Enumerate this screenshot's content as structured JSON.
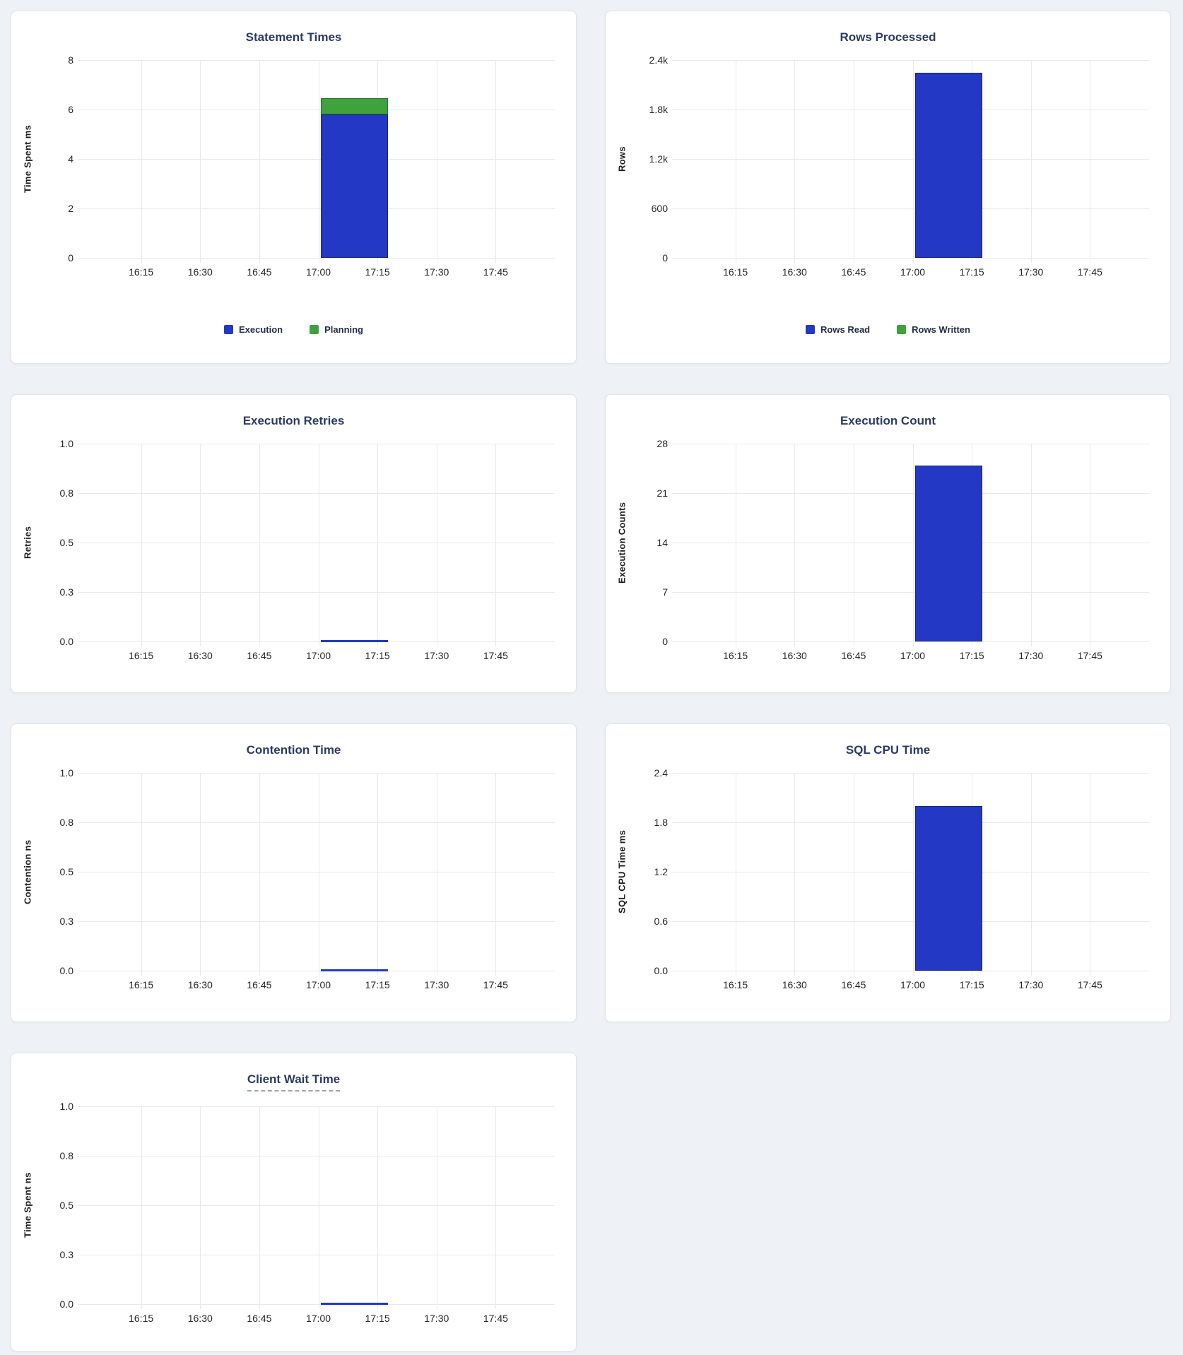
{
  "page": {
    "background_color": "#eef1f5",
    "card_background": "#ffffff",
    "description": "Database statement monitoring dashboard with seven time-series bar charts"
  },
  "colors": {
    "bar_blue_fill": "#2338c5",
    "bar_blue_border": "#172579",
    "bar_green_fill": "#3fa23c",
    "bar_green_border": "#27742c",
    "title_text": "#2c3a64",
    "tick_text": "#262626",
    "gridline": "#e8e9eb"
  },
  "axis": {
    "x_ticks": [
      "16:15",
      "16:30",
      "16:45",
      "17:00",
      "17:15",
      "17:30",
      "17:45"
    ],
    "x_tick_positions_pct": [
      12.5,
      25,
      37.5,
      50,
      62.5,
      75,
      87.5
    ],
    "bar_left_pct": 50.5,
    "bar_width_pct": 14.2
  },
  "chart_data": [
    {
      "type": "bar",
      "title": "Statement Times",
      "ylabel": "Time Spent ms",
      "y_ticks": [
        "8",
        "6",
        "4",
        "2",
        "0"
      ],
      "ylim": [
        0,
        8
      ],
      "x": [
        "17:00-17:15"
      ],
      "series": [
        {
          "name": "Execution",
          "color": "blue",
          "values": [
            5.8
          ]
        },
        {
          "name": "Planning",
          "color": "green",
          "values": [
            0.65
          ]
        }
      ],
      "legend": [
        {
          "label": "Execution",
          "color": "blue"
        },
        {
          "label": "Planning",
          "color": "green"
        }
      ],
      "title_underlined": false,
      "zero_line": false
    },
    {
      "type": "bar",
      "title": "Rows Processed",
      "ylabel": "Rows",
      "y_ticks": [
        "2.4k",
        "1.8k",
        "1.2k",
        "600",
        "0"
      ],
      "ylim": [
        0,
        2400
      ],
      "x": [
        "17:00-17:15"
      ],
      "series": [
        {
          "name": "Rows Read",
          "color": "blue",
          "values": [
            2250
          ]
        },
        {
          "name": "Rows Written",
          "color": "green",
          "values": [
            0
          ]
        }
      ],
      "legend": [
        {
          "label": "Rows Read",
          "color": "blue"
        },
        {
          "label": "Rows Written",
          "color": "green"
        }
      ],
      "title_underlined": false,
      "zero_line": false
    },
    {
      "type": "bar",
      "title": "Execution Retries",
      "ylabel": "Retries",
      "y_ticks": [
        "1.0",
        "0.8",
        "0.5",
        "0.3",
        "0.0"
      ],
      "ylim": [
        0,
        1
      ],
      "x": [
        "17:00-17:15"
      ],
      "series": [
        {
          "name": "Retries",
          "color": "blue",
          "values": [
            0
          ]
        }
      ],
      "legend": [],
      "title_underlined": false,
      "zero_line": true
    },
    {
      "type": "bar",
      "title": "Execution Count",
      "ylabel": "Execution Counts",
      "y_ticks": [
        "28",
        "21",
        "14",
        "7",
        "0"
      ],
      "ylim": [
        0,
        28
      ],
      "x": [
        "17:00-17:15"
      ],
      "series": [
        {
          "name": "Execution Count",
          "color": "blue",
          "values": [
            24.9
          ]
        }
      ],
      "legend": [],
      "title_underlined": false,
      "zero_line": false
    },
    {
      "type": "bar",
      "title": "Contention Time",
      "ylabel": "Contention ns",
      "y_ticks": [
        "1.0",
        "0.8",
        "0.5",
        "0.3",
        "0.0"
      ],
      "ylim": [
        0,
        1
      ],
      "x": [
        "17:00-17:15"
      ],
      "series": [
        {
          "name": "Contention",
          "color": "blue",
          "values": [
            0
          ]
        }
      ],
      "legend": [],
      "title_underlined": false,
      "zero_line": true
    },
    {
      "type": "bar",
      "title": "SQL CPU Time",
      "ylabel": "SQL CPU Time ms",
      "y_ticks": [
        "2.4",
        "1.8",
        "1.2",
        "0.6",
        "0.0"
      ],
      "ylim": [
        0,
        2.4
      ],
      "x": [
        "17:00-17:15"
      ],
      "series": [
        {
          "name": "SQL CPU Time",
          "color": "blue",
          "values": [
            2.0
          ]
        }
      ],
      "legend": [],
      "title_underlined": false,
      "zero_line": false
    },
    {
      "type": "bar",
      "title": "Client Wait Time",
      "ylabel": "Time Spent ns",
      "y_ticks": [
        "1.0",
        "0.8",
        "0.5",
        "0.3",
        "0.0"
      ],
      "ylim": [
        0,
        1
      ],
      "x": [
        "17:00-17:15"
      ],
      "series": [
        {
          "name": "Client Wait",
          "color": "blue",
          "values": [
            0
          ]
        }
      ],
      "legend": [],
      "title_underlined": true,
      "zero_line": true
    }
  ]
}
